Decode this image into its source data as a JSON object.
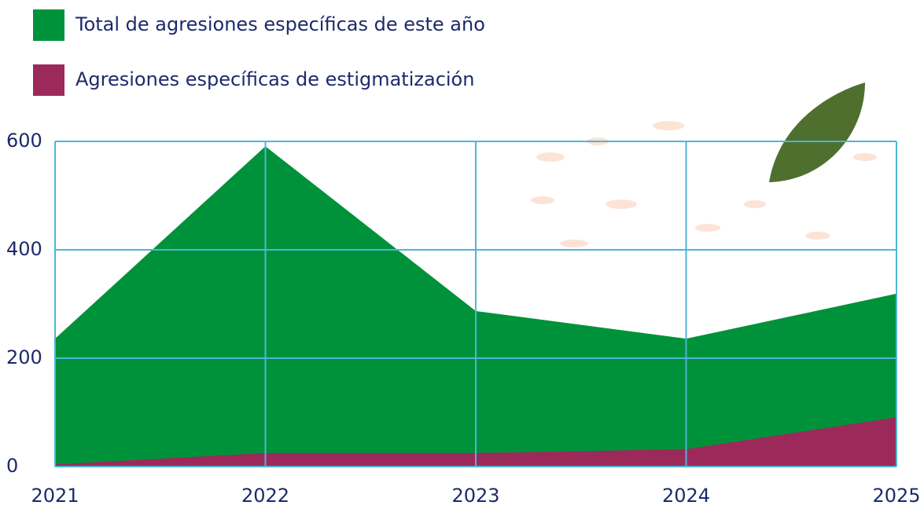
{
  "chart_data": {
    "type": "area",
    "categories": [
      "2021",
      "2022",
      "2023",
      "2024",
      "2025"
    ],
    "series": [
      {
        "name": "Total de agresiones específicas de este año",
        "color": "#00923a",
        "values": [
          236,
          591,
          287,
          236,
          319
        ]
      },
      {
        "name": "Agresiones específicas de estigmatización",
        "color": "#9b2a5a",
        "values": [
          4,
          25,
          25,
          32,
          91
        ]
      }
    ],
    "ylim": [
      0,
      600
    ],
    "yticks": [
      0,
      200,
      400,
      600
    ],
    "grid": true,
    "legend": "top-left"
  }
}
